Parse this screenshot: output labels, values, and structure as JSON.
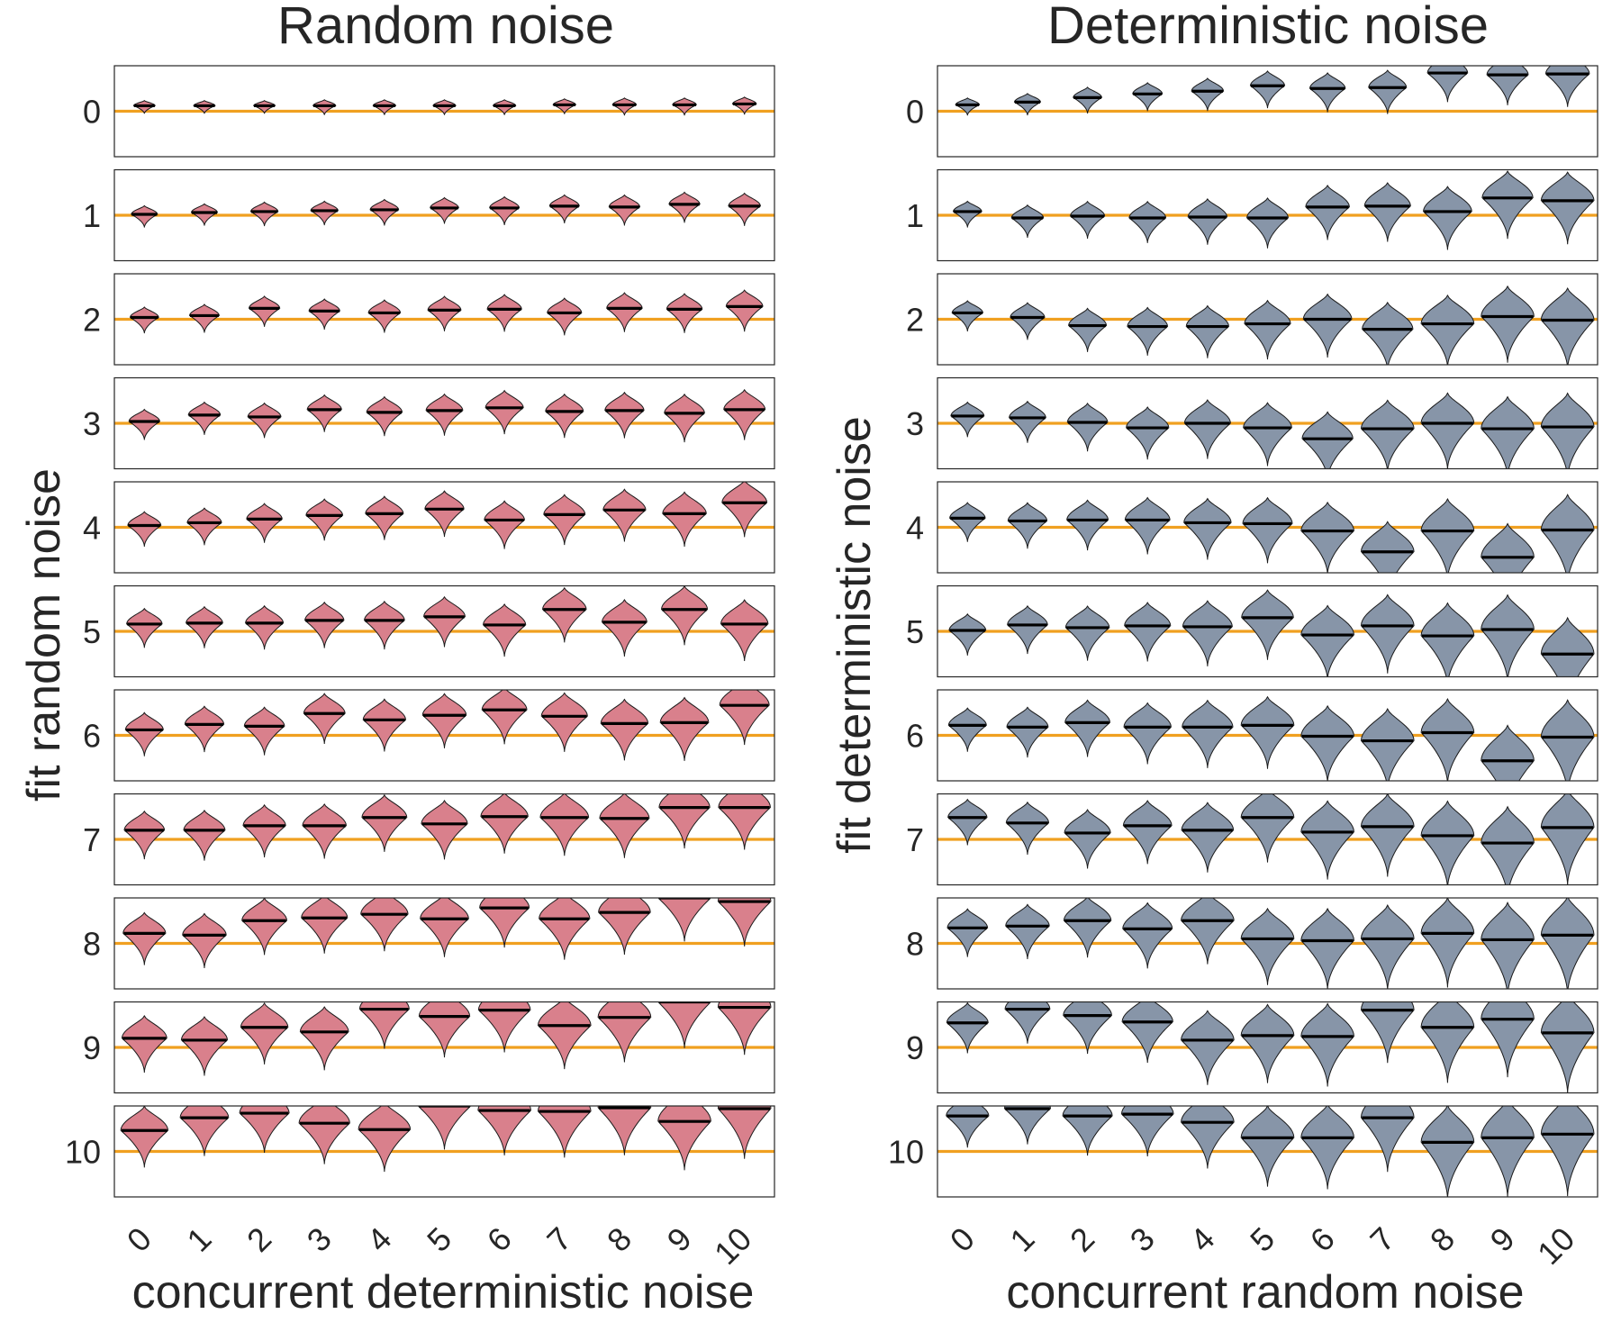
{
  "chart_data": [
    {
      "type": "violin",
      "title": "Random noise",
      "xlabel": "concurrent deterministic noise",
      "ylabel": "fit random noise",
      "x_categories": [
        "0",
        "1",
        "2",
        "3",
        "4",
        "5",
        "6",
        "7",
        "8",
        "9",
        "10"
      ],
      "rows": [
        "0",
        "1",
        "2",
        "3",
        "4",
        "5",
        "6",
        "7",
        "8",
        "9",
        "10"
      ],
      "row_ylim": [
        -0.5,
        0.5
      ],
      "grid": false,
      "fill_color": "#d9808c",
      "reference_line_color": "#f0a020",
      "median_color": "#000000",
      "reference_value_offset": 0,
      "median_offsets": [
        [
          0.06,
          0.06,
          0.06,
          0.06,
          0.06,
          0.06,
          0.06,
          0.07,
          0.07,
          0.07,
          0.08
        ],
        [
          0.01,
          0.03,
          0.04,
          0.05,
          0.06,
          0.08,
          0.08,
          0.1,
          0.09,
          0.12,
          0.1
        ],
        [
          0.02,
          0.04,
          0.12,
          0.09,
          0.07,
          0.1,
          0.11,
          0.07,
          0.12,
          0.11,
          0.14
        ],
        [
          0.02,
          0.09,
          0.07,
          0.15,
          0.12,
          0.14,
          0.17,
          0.13,
          0.14,
          0.11,
          0.15
        ],
        [
          0.02,
          0.05,
          0.09,
          0.13,
          0.15,
          0.2,
          0.08,
          0.14,
          0.19,
          0.15,
          0.27
        ],
        [
          0.08,
          0.09,
          0.09,
          0.12,
          0.12,
          0.16,
          0.07,
          0.24,
          0.1,
          0.24,
          0.08
        ],
        [
          0.06,
          0.12,
          0.1,
          0.24,
          0.17,
          0.22,
          0.28,
          0.21,
          0.13,
          0.14,
          0.33
        ],
        [
          0.1,
          0.1,
          0.15,
          0.15,
          0.24,
          0.17,
          0.25,
          0.24,
          0.23,
          0.35,
          0.35
        ],
        [
          0.11,
          0.09,
          0.25,
          0.28,
          0.32,
          0.27,
          0.39,
          0.27,
          0.34,
          0.5,
          0.46
        ],
        [
          0.1,
          0.08,
          0.22,
          0.17,
          0.42,
          0.34,
          0.41,
          0.24,
          0.33,
          0.5,
          0.44
        ],
        [
          0.23,
          0.37,
          0.42,
          0.31,
          0.24,
          0.5,
          0.45,
          0.44,
          0.48,
          0.33,
          0.47
        ]
      ],
      "spreads": [
        [
          0.06,
          0.06,
          0.06,
          0.07,
          0.07,
          0.07,
          0.07,
          0.07,
          0.08,
          0.08,
          0.08
        ],
        [
          0.1,
          0.1,
          0.11,
          0.11,
          0.12,
          0.12,
          0.13,
          0.13,
          0.14,
          0.14,
          0.15
        ],
        [
          0.12,
          0.13,
          0.14,
          0.14,
          0.15,
          0.16,
          0.17,
          0.17,
          0.18,
          0.18,
          0.19
        ],
        [
          0.14,
          0.15,
          0.16,
          0.17,
          0.18,
          0.19,
          0.2,
          0.2,
          0.21,
          0.22,
          0.23
        ],
        [
          0.16,
          0.17,
          0.18,
          0.19,
          0.2,
          0.21,
          0.22,
          0.23,
          0.24,
          0.25,
          0.26
        ],
        [
          0.18,
          0.19,
          0.2,
          0.21,
          0.22,
          0.23,
          0.24,
          0.25,
          0.26,
          0.27,
          0.28
        ],
        [
          0.2,
          0.21,
          0.22,
          0.23,
          0.24,
          0.25,
          0.26,
          0.27,
          0.28,
          0.29,
          0.3
        ],
        [
          0.22,
          0.23,
          0.24,
          0.25,
          0.26,
          0.27,
          0.28,
          0.29,
          0.3,
          0.31,
          0.32
        ],
        [
          0.24,
          0.25,
          0.26,
          0.27,
          0.28,
          0.29,
          0.3,
          0.31,
          0.32,
          0.33,
          0.34
        ],
        [
          0.26,
          0.27,
          0.28,
          0.29,
          0.3,
          0.31,
          0.32,
          0.33,
          0.34,
          0.35,
          0.36
        ],
        [
          0.28,
          0.29,
          0.3,
          0.31,
          0.32,
          0.33,
          0.34,
          0.35,
          0.36,
          0.37,
          0.38
        ]
      ]
    },
    {
      "type": "violin",
      "title": "Deterministic noise",
      "xlabel": "concurrent random noise",
      "ylabel": "fit deterministic noise",
      "x_categories": [
        "0",
        "1",
        "2",
        "3",
        "4",
        "5",
        "6",
        "7",
        "8",
        "9",
        "10"
      ],
      "rows": [
        "0",
        "1",
        "2",
        "3",
        "4",
        "5",
        "6",
        "7",
        "8",
        "9",
        "10"
      ],
      "row_ylim": [
        -0.5,
        0.5
      ],
      "grid": false,
      "fill_color": "#8795a8",
      "reference_line_color": "#f0a020",
      "median_color": "#000000",
      "reference_value_offset": 0,
      "median_offsets": [
        [
          0.07,
          0.1,
          0.15,
          0.19,
          0.22,
          0.28,
          0.25,
          0.26,
          0.42,
          0.4,
          0.41
        ],
        [
          0.04,
          -0.03,
          -0.01,
          -0.03,
          -0.02,
          -0.03,
          0.09,
          0.1,
          0.04,
          0.19,
          0.16
        ],
        [
          0.07,
          0.02,
          -0.07,
          -0.08,
          -0.08,
          -0.05,
          0.0,
          -0.11,
          -0.05,
          0.03,
          -0.01
        ],
        [
          0.08,
          0.06,
          0.01,
          -0.05,
          0.0,
          -0.05,
          -0.17,
          -0.06,
          0.0,
          -0.06,
          -0.04
        ],
        [
          0.1,
          0.07,
          0.08,
          0.08,
          0.05,
          0.04,
          -0.04,
          -0.27,
          -0.04,
          -0.33,
          -0.03
        ],
        [
          0.01,
          0.07,
          0.04,
          0.06,
          0.05,
          0.15,
          -0.04,
          0.06,
          -0.05,
          0.02,
          -0.25
        ],
        [
          0.11,
          0.09,
          0.14,
          0.09,
          0.09,
          0.11,
          -0.01,
          -0.06,
          0.03,
          -0.28,
          -0.02
        ],
        [
          0.24,
          0.18,
          0.07,
          0.15,
          0.1,
          0.24,
          0.08,
          0.14,
          0.04,
          -0.04,
          0.13
        ],
        [
          0.17,
          0.19,
          0.25,
          0.16,
          0.25,
          0.05,
          0.03,
          0.05,
          0.11,
          0.04,
          0.09
        ],
        [
          0.27,
          0.42,
          0.35,
          0.28,
          0.08,
          0.13,
          0.12,
          0.41,
          0.22,
          0.31,
          0.16
        ],
        [
          0.39,
          0.47,
          0.39,
          0.41,
          0.32,
          0.15,
          0.15,
          0.37,
          0.1,
          0.15,
          0.19
        ]
      ],
      "spreads": [
        [
          0.08,
          0.1,
          0.12,
          0.13,
          0.15,
          0.17,
          0.18,
          0.2,
          0.22,
          0.23,
          0.25
        ],
        [
          0.12,
          0.15,
          0.17,
          0.19,
          0.21,
          0.23,
          0.25,
          0.27,
          0.29,
          0.31,
          0.33
        ],
        [
          0.14,
          0.17,
          0.2,
          0.22,
          0.24,
          0.27,
          0.29,
          0.31,
          0.33,
          0.35,
          0.37
        ],
        [
          0.16,
          0.19,
          0.22,
          0.24,
          0.27,
          0.29,
          0.31,
          0.33,
          0.35,
          0.37,
          0.39
        ],
        [
          0.18,
          0.21,
          0.23,
          0.26,
          0.28,
          0.3,
          0.33,
          0.35,
          0.37,
          0.39,
          0.41
        ],
        [
          0.19,
          0.22,
          0.25,
          0.27,
          0.3,
          0.32,
          0.34,
          0.36,
          0.38,
          0.4,
          0.42
        ],
        [
          0.2,
          0.23,
          0.26,
          0.28,
          0.31,
          0.33,
          0.35,
          0.37,
          0.39,
          0.41,
          0.43
        ],
        [
          0.21,
          0.24,
          0.27,
          0.29,
          0.32,
          0.34,
          0.36,
          0.38,
          0.4,
          0.42,
          0.44
        ],
        [
          0.22,
          0.25,
          0.28,
          0.3,
          0.33,
          0.35,
          0.37,
          0.39,
          0.41,
          0.43,
          0.45
        ],
        [
          0.23,
          0.26,
          0.29,
          0.31,
          0.34,
          0.36,
          0.38,
          0.4,
          0.42,
          0.44,
          0.46
        ],
        [
          0.24,
          0.27,
          0.3,
          0.32,
          0.35,
          0.37,
          0.39,
          0.41,
          0.43,
          0.45,
          0.47
        ]
      ]
    }
  ]
}
